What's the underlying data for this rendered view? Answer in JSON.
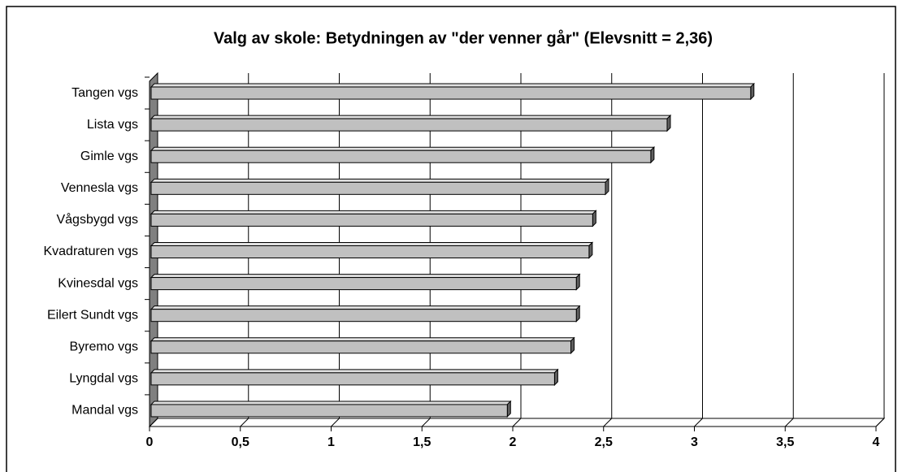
{
  "chart_data": {
    "type": "bar",
    "orientation": "horizontal",
    "title": "Valg av skole: Betydningen av \"der venner går\" (Elevsnitt = 2,36)",
    "categories": [
      "Tangen vgs",
      "Lista vgs",
      "Gimle vgs",
      "Vennesla vgs",
      "Vågsbygd vgs",
      "Kvadraturen vgs",
      "Kvinesdal vgs",
      "Eilert Sundt vgs",
      "Byremo vgs",
      "Lyngdal vgs",
      "Mandal vgs"
    ],
    "values": [
      3.31,
      2.85,
      2.76,
      2.51,
      2.44,
      2.42,
      2.35,
      2.35,
      2.32,
      2.23,
      1.97
    ],
    "color": "#c0c0c0",
    "xlim": [
      0,
      4
    ],
    "xticks": [
      0,
      {
        "value": 0.5,
        "label": "0,5"
      },
      1,
      {
        "value": 1.5,
        "label": "1,5"
      },
      2,
      {
        "value": 2.5,
        "label": "2,5"
      },
      3,
      {
        "value": 3.5,
        "label": "3,5"
      },
      4
    ],
    "grid": true
  }
}
